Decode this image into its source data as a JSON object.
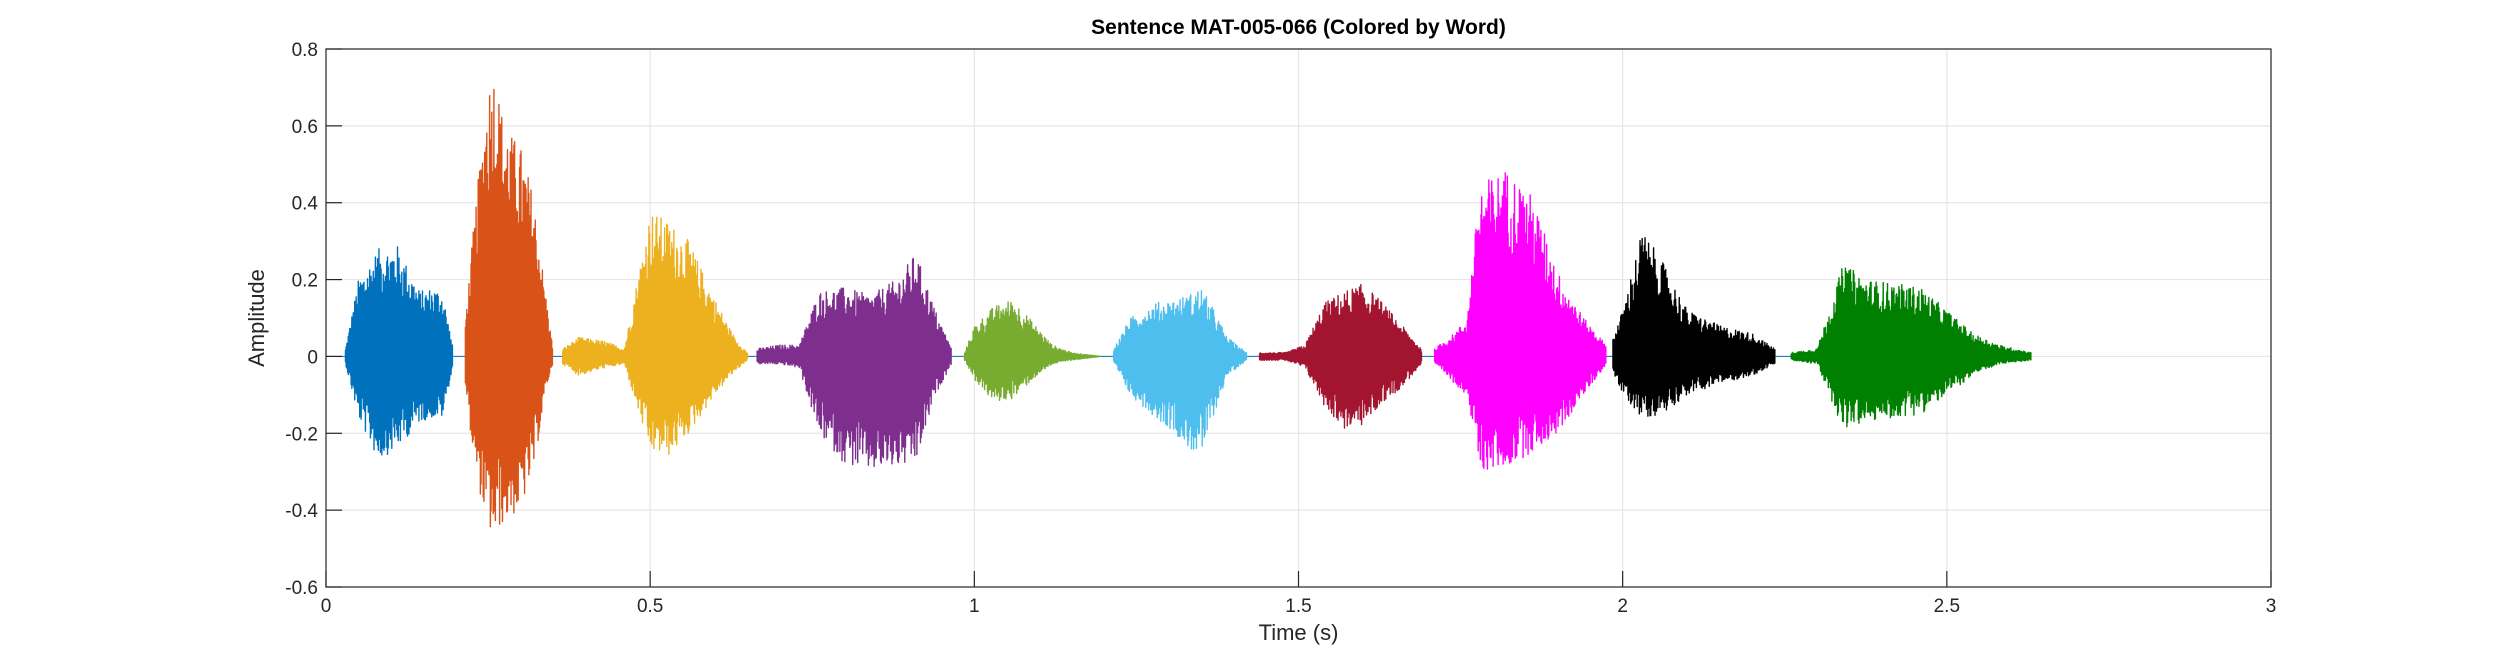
{
  "chart_data": {
    "type": "line",
    "title": "Sentence MAT-005-066 (Colored by Word)",
    "xlabel": "Time (s)",
    "ylabel": "Amplitude",
    "xlim": [
      0,
      3
    ],
    "ylim": [
      -0.6,
      0.8
    ],
    "xticks": [
      0,
      0.5,
      1,
      1.5,
      2,
      2.5,
      3
    ],
    "xtick_labels": [
      "0",
      "0.5",
      "1",
      "1.5",
      "2",
      "2.5",
      "3"
    ],
    "yticks": [
      -0.6,
      -0.4,
      -0.2,
      0,
      0.2,
      0.4,
      0.6,
      0.8
    ],
    "ytick_labels": [
      "-0.6",
      "-0.4",
      "-0.2",
      "0",
      "0.2",
      "0.4",
      "0.6",
      "0.8"
    ],
    "grid": true,
    "series": [
      {
        "color": "#0072BD",
        "t_start": 0.03,
        "t_end": 0.195,
        "envelope": {
          "t": [
            0.03,
            0.05,
            0.08,
            0.11,
            0.13,
            0.145,
            0.165,
            0.18,
            0.195
          ],
          "max": [
            0.02,
            0.2,
            0.28,
            0.29,
            0.22,
            0.17,
            0.18,
            0.17,
            0.03
          ],
          "min": [
            -0.02,
            -0.16,
            -0.27,
            -0.24,
            -0.2,
            -0.17,
            -0.16,
            -0.16,
            -0.03
          ]
        }
      },
      {
        "color": "#D95319",
        "t_start": 0.215,
        "t_end": 0.35,
        "envelope": {
          "t": [
            0.215,
            0.23,
            0.25,
            0.26,
            0.27,
            0.285,
            0.3,
            0.32,
            0.34,
            0.35
          ],
          "max": [
            0.1,
            0.38,
            0.72,
            0.76,
            0.65,
            0.58,
            0.55,
            0.42,
            0.15,
            0.02
          ],
          "min": [
            -0.08,
            -0.3,
            -0.45,
            -0.48,
            -0.44,
            -0.42,
            -0.4,
            -0.3,
            -0.08,
            -0.02
          ]
        }
      },
      {
        "color": "#EDB120",
        "t_start": 0.365,
        "t_end": 0.65,
        "envelope": {
          "t": [
            0.365,
            0.39,
            0.43,
            0.46,
            0.5,
            0.53,
            0.56,
            0.6,
            0.63,
            0.65
          ],
          "max": [
            0.02,
            0.05,
            0.04,
            0.02,
            0.38,
            0.35,
            0.3,
            0.15,
            0.05,
            0.01
          ],
          "min": [
            -0.02,
            -0.05,
            -0.03,
            -0.02,
            -0.25,
            -0.26,
            -0.2,
            -0.1,
            -0.04,
            -0.01
          ]
        }
      },
      {
        "color": "#7E2F8E",
        "t_start": 0.665,
        "t_end": 0.965,
        "envelope": {
          "t": [
            0.665,
            0.7,
            0.73,
            0.76,
            0.8,
            0.84,
            0.88,
            0.91,
            0.94,
            0.965
          ],
          "max": [
            0.02,
            0.03,
            0.03,
            0.17,
            0.18,
            0.16,
            0.2,
            0.27,
            0.12,
            0.02
          ],
          "min": [
            -0.02,
            -0.02,
            -0.03,
            -0.2,
            -0.28,
            -0.3,
            -0.29,
            -0.28,
            -0.1,
            -0.02
          ]
        }
      },
      {
        "color": "#77AC30",
        "t_start": 0.985,
        "t_end": 1.195,
        "envelope": {
          "t": [
            0.985,
            1.0,
            1.03,
            1.06,
            1.09,
            1.12,
            1.15,
            1.195
          ],
          "max": [
            0.01,
            0.08,
            0.13,
            0.15,
            0.09,
            0.03,
            0.01,
            0.0
          ],
          "min": [
            -0.01,
            -0.06,
            -0.12,
            -0.11,
            -0.06,
            -0.02,
            -0.01,
            0.0
          ]
        }
      },
      {
        "color": "#4DBEEE",
        "t_start": 1.215,
        "t_end": 1.42,
        "envelope": {
          "t": [
            1.215,
            1.24,
            1.28,
            1.31,
            1.33,
            1.35,
            1.37,
            1.39,
            1.42
          ],
          "max": [
            0.02,
            0.1,
            0.14,
            0.15,
            0.16,
            0.18,
            0.12,
            0.05,
            0.01
          ],
          "min": [
            -0.02,
            -0.1,
            -0.16,
            -0.2,
            -0.24,
            -0.26,
            -0.15,
            -0.05,
            -0.01
          ]
        }
      },
      {
        "color": "#A2142F",
        "t_start": 1.44,
        "t_end": 1.69,
        "envelope": {
          "t": [
            1.44,
            1.48,
            1.51,
            1.54,
            1.57,
            1.6,
            1.63,
            1.66,
            1.69
          ],
          "max": [
            0.01,
            0.01,
            0.03,
            0.14,
            0.17,
            0.19,
            0.14,
            0.08,
            0.02
          ],
          "min": [
            -0.01,
            -0.01,
            -0.03,
            -0.13,
            -0.19,
            -0.18,
            -0.12,
            -0.08,
            -0.02
          ]
        }
      },
      {
        "color": "#FF00FF",
        "t_start": 1.71,
        "t_end": 1.975,
        "envelope": {
          "t": [
            1.71,
            1.74,
            1.76,
            1.78,
            1.82,
            1.86,
            1.9,
            1.94,
            1.975
          ],
          "max": [
            0.02,
            0.06,
            0.1,
            0.45,
            0.49,
            0.42,
            0.22,
            0.1,
            0.03
          ],
          "min": [
            -0.02,
            -0.07,
            -0.1,
            -0.3,
            -0.29,
            -0.25,
            -0.2,
            -0.1,
            -0.02
          ]
        }
      },
      {
        "color": "#000000",
        "t_start": 1.985,
        "t_end": 2.235,
        "envelope": {
          "t": [
            1.985,
            2.0,
            2.03,
            2.06,
            2.1,
            2.15,
            2.2,
            2.235
          ],
          "max": [
            0.05,
            0.12,
            0.33,
            0.25,
            0.12,
            0.08,
            0.06,
            0.02
          ],
          "min": [
            -0.04,
            -0.1,
            -0.16,
            -0.15,
            -0.1,
            -0.07,
            -0.05,
            -0.02
          ]
        }
      },
      {
        "color": "#008000",
        "t_start": 2.26,
        "t_end": 2.63,
        "envelope": {
          "t": [
            2.26,
            2.3,
            2.34,
            2.38,
            2.42,
            2.46,
            2.5,
            2.54,
            2.58,
            2.63
          ],
          "max": [
            0.01,
            0.02,
            0.24,
            0.2,
            0.19,
            0.18,
            0.12,
            0.06,
            0.03,
            0.01
          ],
          "min": [
            -0.01,
            -0.02,
            -0.19,
            -0.17,
            -0.16,
            -0.15,
            -0.1,
            -0.05,
            -0.02,
            -0.01
          ]
        }
      }
    ]
  }
}
